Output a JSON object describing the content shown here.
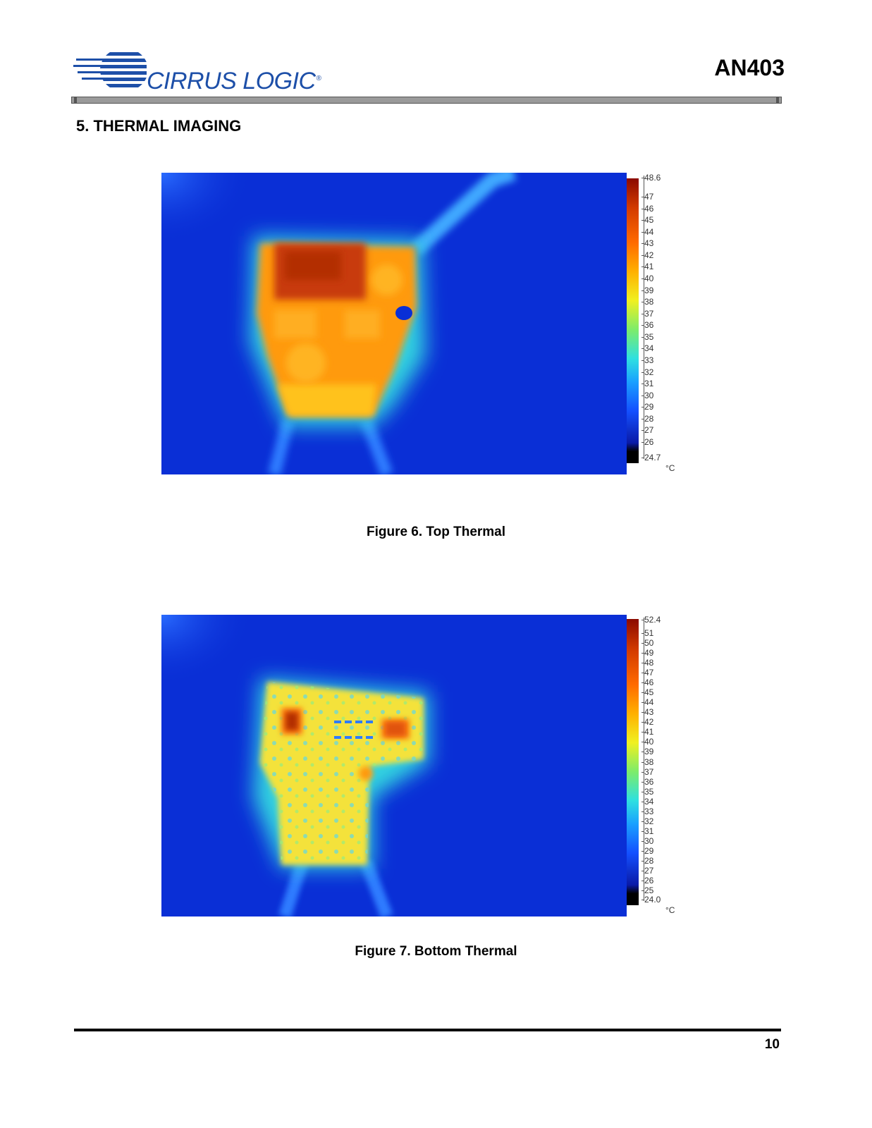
{
  "header": {
    "logo_text": "CIRRUS LOGIC",
    "logo_reg": "®",
    "doc_id": "AN403"
  },
  "section": {
    "title": "5.  THERMAL IMAGING"
  },
  "figures": [
    {
      "caption": "Figure 6.  Top Thermal",
      "scale": {
        "max": "48.6",
        "min": "24.7",
        "unit": "°C",
        "ticks": [
          "47",
          "46",
          "45",
          "44",
          "43",
          "42",
          "41",
          "40",
          "39",
          "38",
          "37",
          "36",
          "35",
          "34",
          "33",
          "32",
          "31",
          "30",
          "29",
          "28",
          "27",
          "26"
        ]
      }
    },
    {
      "caption": "Figure 7.  Bottom Thermal",
      "scale": {
        "max": "52.4",
        "min": "24.0",
        "unit": "°C",
        "ticks": [
          "51",
          "50",
          "49",
          "48",
          "47",
          "46",
          "45",
          "44",
          "43",
          "42",
          "41",
          "40",
          "39",
          "38",
          "37",
          "36",
          "35",
          "34",
          "33",
          "32",
          "31",
          "30",
          "29",
          "28",
          "27",
          "26",
          "25"
        ]
      }
    }
  ],
  "footer": {
    "page_number": "10"
  },
  "colors": {
    "logo_blue": "#1d4fa8",
    "thermal_background": "#0a2fd6",
    "hot": "#c83a08",
    "warm": "#ff9a10",
    "mid": "#e8ea2a"
  }
}
